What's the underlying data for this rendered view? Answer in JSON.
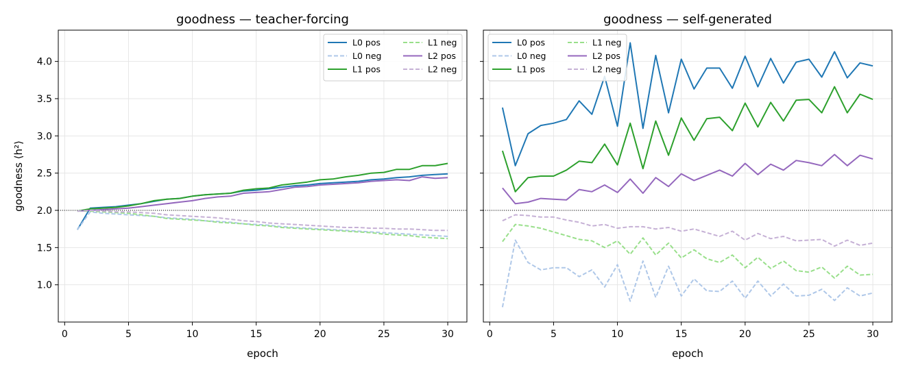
{
  "chart_data": [
    {
      "type": "line",
      "title": "goodness — teacher-forcing",
      "xlabel": "epoch",
      "ylabel": "goodness  ⟨h²⟩",
      "xlim": [
        -0.5,
        31.5
      ],
      "ylim": [
        0.5,
        4.42
      ],
      "xticks": [
        0,
        5,
        10,
        15,
        20,
        25,
        30
      ],
      "yticks": [
        1.0,
        1.5,
        2.0,
        2.5,
        3.0,
        3.5,
        4.0
      ],
      "ytick_labels": [
        "1.0",
        "1.5",
        "2.0",
        "2.5",
        "3.0",
        "3.5",
        "4.0"
      ],
      "grid": true,
      "reference_line": 2.0,
      "legend": {
        "placement": "top-right",
        "columns": 2
      },
      "x": [
        1,
        2,
        3,
        4,
        5,
        6,
        7,
        8,
        9,
        10,
        11,
        12,
        13,
        14,
        15,
        16,
        17,
        18,
        19,
        20,
        21,
        22,
        23,
        24,
        25,
        26,
        27,
        28,
        29,
        30
      ],
      "series": [
        {
          "name": "L0 pos",
          "color": "#1f77b4",
          "dash": "solid",
          "values": [
            1.74,
            2.03,
            2.04,
            2.05,
            2.07,
            2.09,
            2.12,
            2.15,
            2.16,
            2.19,
            2.21,
            2.22,
            2.23,
            2.26,
            2.27,
            2.29,
            2.31,
            2.33,
            2.34,
            2.36,
            2.37,
            2.38,
            2.39,
            2.41,
            2.42,
            2.44,
            2.45,
            2.47,
            2.48,
            2.49
          ]
        },
        {
          "name": "L0 neg",
          "color": "#aec7e8",
          "dash": "dashed",
          "values": [
            1.74,
            1.98,
            1.96,
            1.95,
            1.94,
            1.93,
            1.92,
            1.9,
            1.89,
            1.88,
            1.86,
            1.85,
            1.84,
            1.82,
            1.81,
            1.8,
            1.78,
            1.77,
            1.76,
            1.75,
            1.74,
            1.73,
            1.72,
            1.71,
            1.7,
            1.69,
            1.68,
            1.67,
            1.66,
            1.65
          ]
        },
        {
          "name": "L1 pos",
          "color": "#2ca02c",
          "dash": "solid",
          "values": [
            1.99,
            2.02,
            2.03,
            2.04,
            2.06,
            2.09,
            2.13,
            2.15,
            2.16,
            2.19,
            2.21,
            2.22,
            2.23,
            2.27,
            2.29,
            2.3,
            2.34,
            2.36,
            2.38,
            2.41,
            2.42,
            2.45,
            2.47,
            2.5,
            2.51,
            2.55,
            2.55,
            2.6,
            2.6,
            2.63
          ]
        },
        {
          "name": "L1 neg",
          "color": "#98df8a",
          "dash": "dashed",
          "values": [
            1.99,
            1.99,
            1.98,
            1.97,
            1.96,
            1.94,
            1.92,
            1.89,
            1.88,
            1.87,
            1.86,
            1.84,
            1.83,
            1.82,
            1.8,
            1.79,
            1.77,
            1.76,
            1.75,
            1.74,
            1.73,
            1.72,
            1.71,
            1.7,
            1.68,
            1.67,
            1.66,
            1.64,
            1.63,
            1.62
          ]
        },
        {
          "name": "L2 pos",
          "color": "#9467bd",
          "dash": "solid",
          "values": [
            1.99,
            2.0,
            2.01,
            2.02,
            2.03,
            2.05,
            2.07,
            2.09,
            2.11,
            2.13,
            2.16,
            2.18,
            2.19,
            2.23,
            2.24,
            2.25,
            2.28,
            2.31,
            2.32,
            2.34,
            2.35,
            2.36,
            2.37,
            2.39,
            2.4,
            2.41,
            2.4,
            2.45,
            2.43,
            2.44
          ]
        },
        {
          "name": "L2 neg",
          "color": "#c5b0d5",
          "dash": "dashed",
          "values": [
            1.99,
            2.0,
            1.99,
            1.98,
            1.98,
            1.97,
            1.96,
            1.94,
            1.93,
            1.92,
            1.91,
            1.9,
            1.88,
            1.86,
            1.85,
            1.83,
            1.82,
            1.81,
            1.8,
            1.79,
            1.78,
            1.77,
            1.77,
            1.76,
            1.76,
            1.75,
            1.75,
            1.74,
            1.73,
            1.73
          ]
        }
      ]
    },
    {
      "type": "line",
      "title": "goodness — self-generated",
      "xlabel": "epoch",
      "xlim": [
        -0.5,
        31.5
      ],
      "ylim": [
        0.5,
        4.42
      ],
      "xticks": [
        0,
        5,
        10,
        15,
        20,
        25,
        30
      ],
      "grid": true,
      "reference_line": 2.0,
      "legend": {
        "placement": "top-left",
        "columns": 2
      },
      "x": [
        1,
        2,
        3,
        4,
        5,
        6,
        7,
        8,
        9,
        10,
        11,
        12,
        13,
        14,
        15,
        16,
        17,
        18,
        19,
        20,
        21,
        22,
        23,
        24,
        25,
        26,
        27,
        28,
        29,
        30
      ],
      "series": [
        {
          "name": "L0 pos",
          "color": "#1f77b4",
          "dash": "solid",
          "values": [
            3.38,
            2.6,
            3.03,
            3.14,
            3.17,
            3.22,
            3.47,
            3.29,
            3.8,
            3.13,
            4.25,
            3.1,
            4.08,
            3.31,
            4.03,
            3.63,
            3.91,
            3.91,
            3.64,
            4.07,
            3.66,
            4.04,
            3.71,
            3.99,
            4.03,
            3.79,
            4.13,
            3.78,
            3.98,
            3.94
          ]
        },
        {
          "name": "L0 neg",
          "color": "#aec7e8",
          "dash": "dashed",
          "values": [
            0.7,
            1.6,
            1.3,
            1.2,
            1.23,
            1.23,
            1.11,
            1.2,
            0.97,
            1.27,
            0.78,
            1.32,
            0.83,
            1.25,
            0.85,
            1.08,
            0.92,
            0.91,
            1.05,
            0.82,
            1.05,
            0.85,
            1.01,
            0.85,
            0.86,
            0.94,
            0.79,
            0.96,
            0.85,
            0.89
          ]
        },
        {
          "name": "L1 pos",
          "color": "#2ca02c",
          "dash": "solid",
          "values": [
            2.8,
            2.25,
            2.44,
            2.46,
            2.46,
            2.54,
            2.66,
            2.64,
            2.89,
            2.61,
            3.17,
            2.56,
            3.2,
            2.74,
            3.24,
            2.94,
            3.23,
            3.25,
            3.07,
            3.44,
            3.12,
            3.45,
            3.2,
            3.48,
            3.49,
            3.31,
            3.66,
            3.31,
            3.56,
            3.49
          ]
        },
        {
          "name": "L1 neg",
          "color": "#98df8a",
          "dash": "dashed",
          "values": [
            1.58,
            1.81,
            1.79,
            1.76,
            1.71,
            1.66,
            1.61,
            1.59,
            1.5,
            1.59,
            1.41,
            1.63,
            1.4,
            1.56,
            1.36,
            1.47,
            1.35,
            1.3,
            1.4,
            1.23,
            1.37,
            1.22,
            1.32,
            1.19,
            1.17,
            1.24,
            1.09,
            1.25,
            1.13,
            1.14
          ]
        },
        {
          "name": "L2 pos",
          "color": "#9467bd",
          "dash": "solid",
          "values": [
            2.3,
            2.09,
            2.11,
            2.16,
            2.15,
            2.14,
            2.28,
            2.25,
            2.34,
            2.24,
            2.42,
            2.23,
            2.44,
            2.32,
            2.49,
            2.4,
            2.47,
            2.54,
            2.46,
            2.63,
            2.48,
            2.62,
            2.54,
            2.67,
            2.64,
            2.6,
            2.75,
            2.6,
            2.74,
            2.69
          ]
        },
        {
          "name": "L2 neg",
          "color": "#c5b0d5",
          "dash": "dashed",
          "values": [
            1.86,
            1.94,
            1.93,
            1.91,
            1.91,
            1.87,
            1.84,
            1.79,
            1.81,
            1.76,
            1.78,
            1.78,
            1.75,
            1.77,
            1.72,
            1.75,
            1.7,
            1.65,
            1.72,
            1.6,
            1.69,
            1.62,
            1.65,
            1.59,
            1.6,
            1.61,
            1.52,
            1.6,
            1.53,
            1.56
          ]
        }
      ]
    }
  ]
}
